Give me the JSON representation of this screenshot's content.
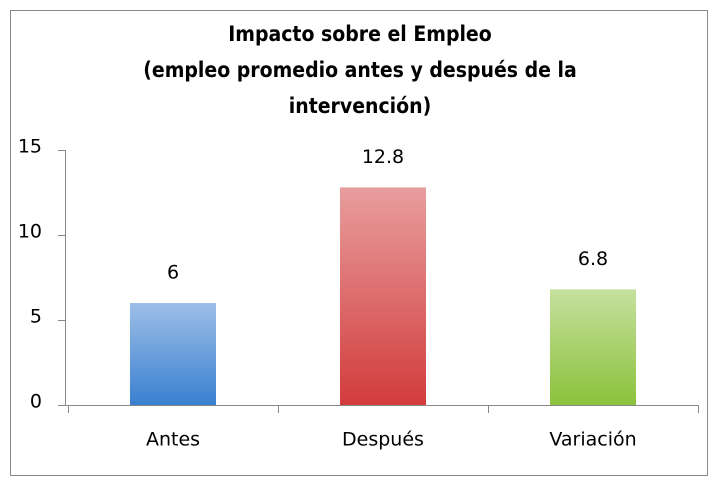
{
  "chart_data": {
    "type": "bar",
    "title": "Impacto sobre el Empleo",
    "subtitle": "(empleo promedio antes y después de la intervención)",
    "categories": [
      "Antes",
      "Después",
      "Variación"
    ],
    "values": [
      6,
      12.8,
      6.8
    ],
    "colors": [
      "#3a7fd0",
      "#d23c3c",
      "#8cc23c"
    ],
    "ylim": [
      0,
      15
    ],
    "yticks": [
      0,
      5,
      10,
      15
    ],
    "grid": false
  }
}
